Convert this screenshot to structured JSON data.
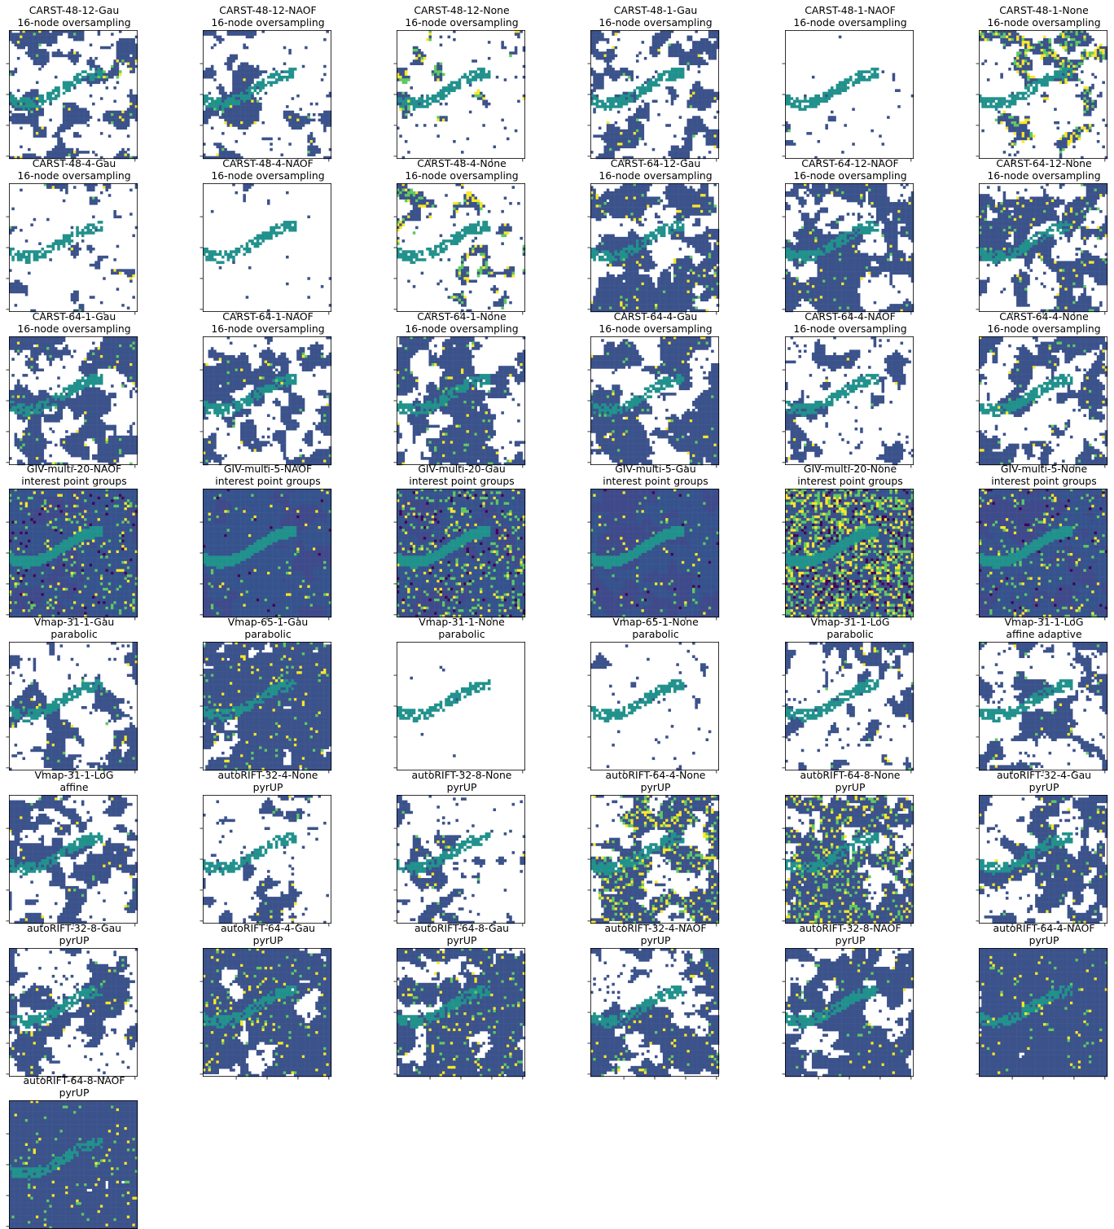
{
  "chart_data": {
    "type": "heatmap",
    "layout": {
      "columns": 6,
      "rows": 7
    },
    "colormap": [
      "#440154",
      "#3b528b",
      "#21918c",
      "#5ec962",
      "#fde725"
    ],
    "panels": [
      {
        "title": "CARST-48-12-Gau",
        "subtitle": "16-node oversampling",
        "style": "masked",
        "coverage": 0.45,
        "noise": 0.05
      },
      {
        "title": "CARST-48-12-NAOF",
        "subtitle": "16-node oversampling",
        "style": "masked",
        "coverage": 0.38,
        "noise": 0.03
      },
      {
        "title": "CARST-48-12-None",
        "subtitle": "16-node oversampling",
        "style": "masked",
        "coverage": 0.36,
        "noise": 0.35
      },
      {
        "title": "CARST-48-1-Gau",
        "subtitle": "16-node oversampling",
        "style": "masked",
        "coverage": 0.47,
        "noise": 0.05
      },
      {
        "title": "CARST-48-1-NAOF",
        "subtitle": "16-node oversampling",
        "style": "masked",
        "coverage": 0.22,
        "noise": 0.03
      },
      {
        "title": "CARST-48-1-None",
        "subtitle": "16-node oversampling",
        "style": "masked",
        "coverage": 0.38,
        "noise": 0.35
      },
      {
        "title": "CARST-48-4-Gau",
        "subtitle": "16-node oversampling",
        "style": "masked",
        "coverage": 0.3,
        "noise": 0.05
      },
      {
        "title": "CARST-48-4-NAOF",
        "subtitle": "16-node oversampling",
        "style": "masked",
        "coverage": 0.18,
        "noise": 0.02
      },
      {
        "title": "CARST-48-4-None",
        "subtitle": "16-node oversampling",
        "style": "masked",
        "coverage": 0.34,
        "noise": 0.32
      },
      {
        "title": "CARST-64-12-Gau",
        "subtitle": "16-node oversampling",
        "style": "masked",
        "coverage": 0.55,
        "noise": 0.05
      },
      {
        "title": "CARST-64-12-NAOF",
        "subtitle": "16-node oversampling",
        "style": "masked",
        "coverage": 0.52,
        "noise": 0.04
      },
      {
        "title": "CARST-64-12-None",
        "subtitle": "16-node oversampling",
        "style": "masked",
        "coverage": 0.52,
        "noise": 0.08
      },
      {
        "title": "CARST-64-1-Gau",
        "subtitle": "16-node oversampling",
        "style": "masked",
        "coverage": 0.55,
        "noise": 0.05
      },
      {
        "title": "CARST-64-1-NAOF",
        "subtitle": "16-node oversampling",
        "style": "masked",
        "coverage": 0.48,
        "noise": 0.03
      },
      {
        "title": "CARST-64-1-None",
        "subtitle": "16-node oversampling",
        "style": "masked",
        "coverage": 0.52,
        "noise": 0.06
      },
      {
        "title": "CARST-64-4-Gau",
        "subtitle": "16-node oversampling",
        "style": "masked",
        "coverage": 0.52,
        "noise": 0.05
      },
      {
        "title": "CARST-64-4-NAOF",
        "subtitle": "16-node oversampling",
        "style": "masked",
        "coverage": 0.45,
        "noise": 0.03
      },
      {
        "title": "CARST-64-4-None",
        "subtitle": "16-node oversampling",
        "style": "masked",
        "coverage": 0.5,
        "noise": 0.06
      },
      {
        "title": "GIV-multi-20-NAOF",
        "subtitle": "interest point groups",
        "style": "dense",
        "coverage": 1.0,
        "noise": 0.12
      },
      {
        "title": "GIV-multi-5-NAOF",
        "subtitle": "interest point groups",
        "style": "dense",
        "coverage": 1.0,
        "noise": 0.04
      },
      {
        "title": "GIV-multi-20-Gau",
        "subtitle": "interest point groups",
        "style": "dense",
        "coverage": 1.0,
        "noise": 0.18
      },
      {
        "title": "GIV-multi-5-Gau",
        "subtitle": "interest point groups",
        "style": "dense",
        "coverage": 1.0,
        "noise": 0.05
      },
      {
        "title": "GIV-multi-20-None",
        "subtitle": "interest point groups",
        "style": "dense",
        "coverage": 1.0,
        "noise": 0.42
      },
      {
        "title": "GIV-multi-5-None",
        "subtitle": "interest point groups",
        "style": "dense",
        "coverage": 1.0,
        "noise": 0.1
      },
      {
        "title": "Vmap-31-1-Gau",
        "subtitle": "parabolic",
        "style": "masked",
        "coverage": 0.42,
        "noise": 0.04
      },
      {
        "title": "Vmap-65-1-Gau",
        "subtitle": "parabolic",
        "style": "masked",
        "coverage": 0.7,
        "noise": 0.06
      },
      {
        "title": "Vmap-31-1-None",
        "subtitle": "parabolic",
        "style": "masked",
        "coverage": 0.04,
        "noise": 0.02
      },
      {
        "title": "Vmap-65-1-None",
        "subtitle": "parabolic",
        "style": "masked",
        "coverage": 0.22,
        "noise": 0.03
      },
      {
        "title": "Vmap-31-1-LoG",
        "subtitle": "parabolic",
        "style": "masked",
        "coverage": 0.42,
        "noise": 0.04
      },
      {
        "title": "Vmap-31-1-LoG",
        "subtitle": "affine adaptive",
        "style": "masked",
        "coverage": 0.44,
        "noise": 0.04
      },
      {
        "title": "Vmap-31-1-LoG",
        "subtitle": "affine",
        "style": "masked",
        "coverage": 0.44,
        "noise": 0.04
      },
      {
        "title": "autoRIFT-32-4-None",
        "subtitle": "pyrUP",
        "style": "masked",
        "coverage": 0.32,
        "noise": 0.04
      },
      {
        "title": "autoRIFT-32-8-None",
        "subtitle": "pyrUP",
        "style": "masked",
        "coverage": 0.34,
        "noise": 0.04
      },
      {
        "title": "autoRIFT-64-4-None",
        "subtitle": "pyrUP",
        "style": "masked",
        "coverage": 0.55,
        "noise": 0.25
      },
      {
        "title": "autoRIFT-64-8-None",
        "subtitle": "pyrUP",
        "style": "masked",
        "coverage": 0.58,
        "noise": 0.2
      },
      {
        "title": "autoRIFT-32-4-Gau",
        "subtitle": "pyrUP",
        "style": "masked",
        "coverage": 0.48,
        "noise": 0.05
      },
      {
        "title": "autoRIFT-32-8-Gau",
        "subtitle": "pyrUP",
        "style": "masked",
        "coverage": 0.5,
        "noise": 0.05
      },
      {
        "title": "autoRIFT-64-4-Gau",
        "subtitle": "pyrUP",
        "style": "masked",
        "coverage": 0.66,
        "noise": 0.06
      },
      {
        "title": "autoRIFT-64-8-Gau",
        "subtitle": "pyrUP",
        "style": "masked",
        "coverage": 0.66,
        "noise": 0.08
      },
      {
        "title": "autoRIFT-32-4-NAOF",
        "subtitle": "pyrUP",
        "style": "masked",
        "coverage": 0.54,
        "noise": 0.04
      },
      {
        "title": "autoRIFT-32-8-NAOF",
        "subtitle": "pyrUP",
        "style": "masked",
        "coverage": 0.58,
        "noise": 0.04
      },
      {
        "title": "autoRIFT-64-4-NAOF",
        "subtitle": "pyrUP",
        "style": "masked",
        "coverage": 0.84,
        "noise": 0.04
      },
      {
        "title": "autoRIFT-64-8-NAOF",
        "subtitle": "pyrUP",
        "style": "masked",
        "coverage": 0.86,
        "noise": 0.04
      }
    ]
  }
}
